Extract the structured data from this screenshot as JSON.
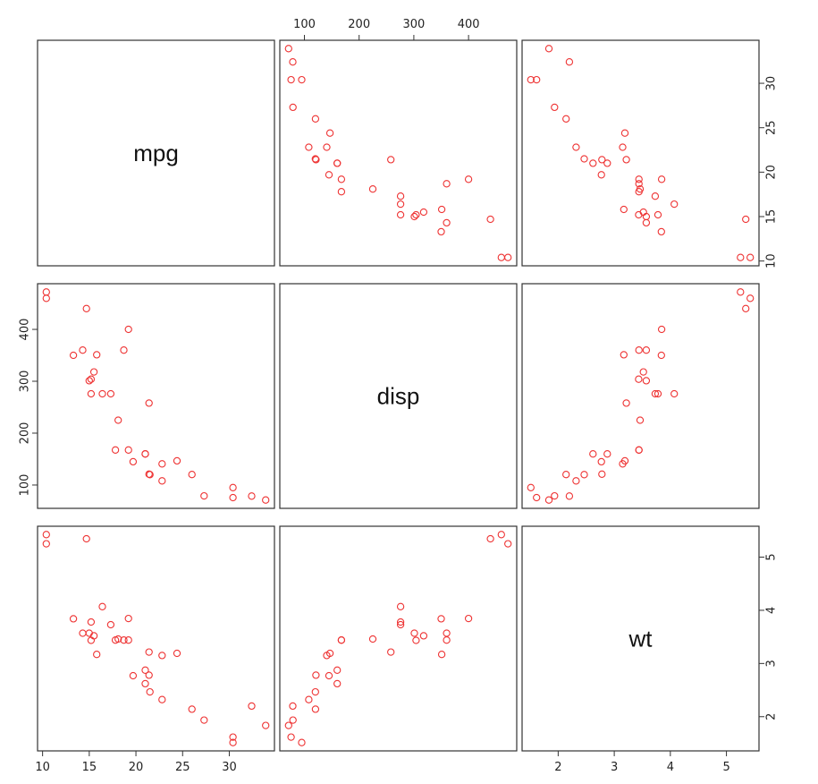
{
  "chart_data": {
    "type": "scatter-matrix",
    "variables": [
      "mpg",
      "disp",
      "wt"
    ],
    "point_color": "#ee3333",
    "ranges": {
      "mpg": [
        10.4,
        33.9
      ],
      "disp": [
        71.1,
        472
      ],
      "wt": [
        1.513,
        5.424
      ]
    },
    "ticks": {
      "mpg": [
        10,
        15,
        20,
        25,
        30
      ],
      "mpg_right": [
        10,
        15,
        20,
        25,
        30
      ],
      "disp": [
        100,
        200,
        300,
        400
      ],
      "wt": [
        2,
        3,
        4,
        5
      ]
    },
    "tick_labels": {
      "mpg": [
        "10",
        "15",
        "20",
        "25",
        "30"
      ],
      "mpg_right": [
        "10",
        "15",
        "20",
        "25",
        "30"
      ],
      "disp": [
        "100",
        "200",
        "300",
        "400"
      ],
      "wt": [
        "2",
        "3",
        "4",
        "5"
      ]
    },
    "data": {
      "mpg": [
        21.0,
        21.0,
        22.8,
        21.4,
        18.7,
        18.1,
        14.3,
        24.4,
        22.8,
        19.2,
        17.8,
        16.4,
        17.3,
        15.2,
        10.4,
        10.4,
        14.7,
        32.4,
        30.4,
        33.9,
        21.5,
        15.5,
        15.2,
        13.3,
        19.2,
        27.3,
        26.0,
        30.4,
        15.8,
        19.7,
        15.0,
        21.4
      ],
      "disp": [
        160,
        160,
        108,
        258,
        360,
        225,
        360,
        146.7,
        140.8,
        167.6,
        167.6,
        275.8,
        275.8,
        275.8,
        472,
        460,
        440,
        78.7,
        75.7,
        71.1,
        120.1,
        318,
        304,
        350,
        400,
        79,
        120.3,
        95.1,
        351,
        145,
        301,
        121
      ],
      "wt": [
        2.62,
        2.875,
        2.32,
        3.215,
        3.44,
        3.46,
        3.57,
        3.19,
        3.15,
        3.44,
        3.44,
        4.07,
        3.73,
        3.78,
        5.25,
        5.424,
        5.345,
        2.2,
        1.615,
        1.835,
        2.465,
        3.52,
        3.435,
        3.84,
        3.845,
        1.935,
        2.14,
        1.513,
        3.17,
        2.77,
        3.57,
        2.78
      ]
    }
  }
}
